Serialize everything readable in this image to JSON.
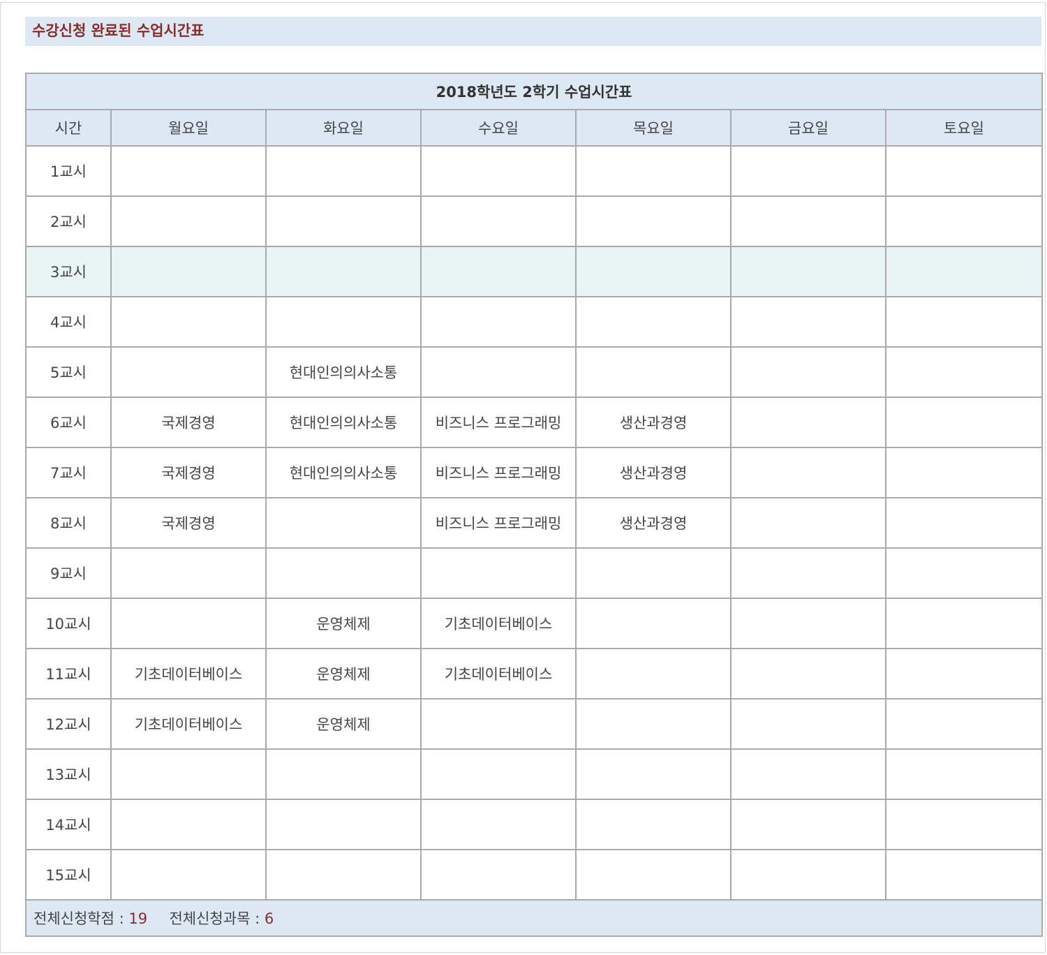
{
  "section_title": "수강신청 완료된 수업시간표",
  "timetable": {
    "caption": "2018학년도 2학기 수업시간표",
    "headers": [
      "시간",
      "월요일",
      "화요일",
      "수요일",
      "목요일",
      "금요일",
      "토요일"
    ],
    "rows": [
      {
        "period": "1교시",
        "cells": [
          "",
          "",
          "",
          "",
          "",
          ""
        ]
      },
      {
        "period": "2교시",
        "cells": [
          "",
          "",
          "",
          "",
          "",
          ""
        ]
      },
      {
        "period": "3교시",
        "cells": [
          "",
          "",
          "",
          "",
          "",
          ""
        ]
      },
      {
        "period": "4교시",
        "cells": [
          "",
          "",
          "",
          "",
          "",
          ""
        ]
      },
      {
        "period": "5교시",
        "cells": [
          "",
          "현대인의의사소통",
          "",
          "",
          "",
          ""
        ]
      },
      {
        "period": "6교시",
        "cells": [
          "국제경영",
          "현대인의의사소통",
          "비즈니스 프로그래밍",
          "생산과경영",
          "",
          ""
        ]
      },
      {
        "period": "7교시",
        "cells": [
          "국제경영",
          "현대인의의사소통",
          "비즈니스 프로그래밍",
          "생산과경영",
          "",
          ""
        ]
      },
      {
        "period": "8교시",
        "cells": [
          "국제경영",
          "",
          "비즈니스 프로그래밍",
          "생산과경영",
          "",
          ""
        ]
      },
      {
        "period": "9교시",
        "cells": [
          "",
          "",
          "",
          "",
          "",
          ""
        ]
      },
      {
        "period": "10교시",
        "cells": [
          "",
          "운영체제",
          "기초데이터베이스",
          "",
          "",
          ""
        ]
      },
      {
        "period": "11교시",
        "cells": [
          "기초데이터베이스",
          "운영체제",
          "기초데이터베이스",
          "",
          "",
          ""
        ]
      },
      {
        "period": "12교시",
        "cells": [
          "기초데이터베이스",
          "운영체제",
          "",
          "",
          "",
          ""
        ]
      },
      {
        "period": "13교시",
        "cells": [
          "",
          "",
          "",
          "",
          "",
          ""
        ]
      },
      {
        "period": "14교시",
        "cells": [
          "",
          "",
          "",
          "",
          "",
          ""
        ]
      },
      {
        "period": "15교시",
        "cells": [
          "",
          "",
          "",
          "",
          "",
          ""
        ]
      }
    ]
  },
  "footer": {
    "credits_label": "전체신청학점 :",
    "credits_value": "19",
    "courses_label": "전체신청과목 :",
    "courses_value": "6"
  },
  "colors": {
    "header_bg": "#dde8f5",
    "title_text": "#8b2c2c",
    "highlight_row_bg": "#e8f5f5",
    "border": "#a9a9a9"
  }
}
